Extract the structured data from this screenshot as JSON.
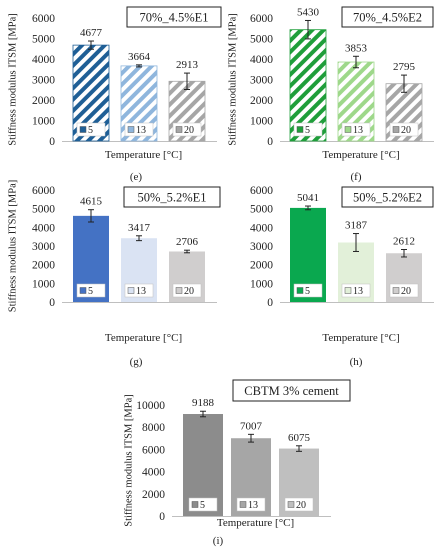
{
  "panels": [
    {
      "caption": "(e)",
      "chart_data": {
        "type": "bar",
        "title": "70%_4.5%E1",
        "xlabel": "Temperature [°C]",
        "ylabel": "Stiffness modulus ITSM [MPa]",
        "ylim": [
          0,
          6000
        ],
        "yticks": [
          0,
          1000,
          2000,
          3000,
          4000,
          5000,
          6000
        ],
        "categories": [
          "5",
          "13",
          "20"
        ],
        "values": [
          4677,
          3664,
          2913
        ],
        "errors": [
          200,
          50,
          400
        ],
        "data_labels": [
          "4677",
          "3664",
          "2913"
        ],
        "fills": [
          "hatch",
          "hatch",
          "hatch"
        ],
        "colors": [
          "#1f5f96",
          "#8fb6dd",
          "#a6a6a6"
        ]
      }
    },
    {
      "caption": "(f)",
      "chart_data": {
        "type": "bar",
        "title": "70%_4.5%E2",
        "xlabel": "Temperature [°C]",
        "ylabel": "Stiffness modulus ITSM [MPa]",
        "ylim": [
          0,
          6000
        ],
        "yticks": [
          0,
          1000,
          2000,
          3000,
          4000,
          5000,
          6000
        ],
        "categories": [
          "5",
          "13",
          "20"
        ],
        "values": [
          5430,
          3853,
          2795
        ],
        "errors": [
          450,
          280,
          420
        ],
        "data_labels": [
          "5430",
          "3853",
          "2795"
        ],
        "fills": [
          "hatch",
          "hatch",
          "hatch"
        ],
        "colors": [
          "#1f9e3a",
          "#9ed88a",
          "#a6a6a6"
        ]
      }
    },
    {
      "caption": "(g)",
      "chart_data": {
        "type": "bar",
        "title": "50%_5.2%E1",
        "xlabel": "Temperature [°C]",
        "ylabel": "Stiffness modulus ITSM [MPa]",
        "ylim": [
          0,
          6000
        ],
        "yticks": [
          0,
          1000,
          2000,
          3000,
          4000,
          5000,
          6000
        ],
        "categories": [
          "5",
          "13",
          "20"
        ],
        "values": [
          4615,
          3417,
          2706
        ],
        "errors": [
          330,
          130,
          70
        ],
        "data_labels": [
          "4615",
          "3417",
          "2706"
        ],
        "fills": [
          "solid",
          "solid",
          "solid"
        ],
        "colors": [
          "#4472c4",
          "#dae3f3",
          "#d0cece"
        ]
      }
    },
    {
      "caption": "(h)",
      "chart_data": {
        "type": "bar",
        "title": "50%_5.2%E2",
        "xlabel": "Temperature [°C]",
        "ylabel": "",
        "ylim": [
          0,
          6000
        ],
        "yticks": [
          0,
          1000,
          2000,
          3000,
          4000,
          5000,
          6000
        ],
        "categories": [
          "5",
          "13",
          "20"
        ],
        "values": [
          5041,
          3187,
          2612
        ],
        "errors": [
          100,
          480,
          200
        ],
        "data_labels": [
          "5041",
          "3187",
          "2612"
        ],
        "fills": [
          "solid",
          "solid",
          "solid"
        ],
        "colors": [
          "#0aa84f",
          "#e2f0d9",
          "#d0cece"
        ]
      }
    },
    {
      "caption": "(i)",
      "chart_data": {
        "type": "bar",
        "title": "CBTM 3% cement",
        "xlabel": "Temperature [°C]",
        "ylabel": "Stiffness modulus ITSM [MPa]",
        "ylim": [
          0,
          10000
        ],
        "yticks": [
          0,
          2000,
          4000,
          6000,
          8000,
          10000
        ],
        "categories": [
          "5",
          "13",
          "20"
        ],
        "values": [
          9188,
          7007,
          6075
        ],
        "errors": [
          250,
          350,
          250
        ],
        "data_labels": [
          "9188",
          "7007",
          "6075"
        ],
        "fills": [
          "solid",
          "solid",
          "solid"
        ],
        "colors": [
          "#8c8c8c",
          "#a6a6a6",
          "#bfbfbf"
        ]
      }
    }
  ]
}
